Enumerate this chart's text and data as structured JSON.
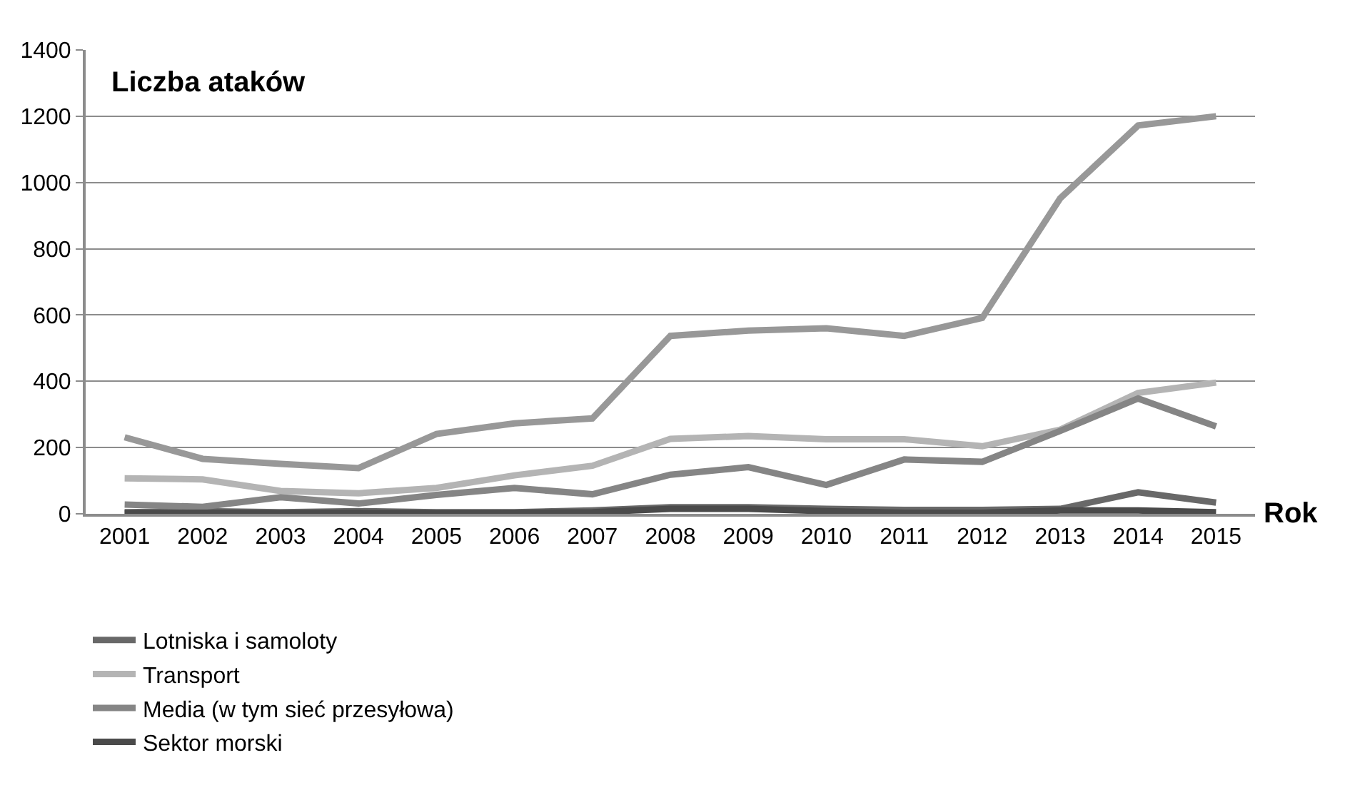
{
  "chart_data": {
    "type": "line",
    "ylabel": "Liczba ataków",
    "xlabel": "Rok",
    "categories": [
      "2001",
      "2002",
      "2003",
      "2004",
      "2005",
      "2006",
      "2007",
      "2008",
      "2009",
      "2010",
      "2011",
      "2012",
      "2013",
      "2014",
      "2015"
    ],
    "series": [
      {
        "name": "Lotniska i samoloty",
        "color": "#686868",
        "values": [
          5,
          8,
          5,
          8,
          5,
          5,
          10,
          20,
          20,
          15,
          12,
          12,
          15,
          65,
          34
        ]
      },
      {
        "name": "Transport",
        "color": "#b4b4b4",
        "values": [
          107,
          104,
          69,
          62,
          78,
          116,
          145,
          226,
          235,
          225,
          225,
          204,
          254,
          365,
          396
        ]
      },
      {
        "name": "Media (w tym sieć przesyłowa)",
        "color": "#858585",
        "values": [
          28,
          21,
          50,
          31,
          57,
          78,
          59,
          118,
          141,
          87,
          164,
          157,
          250,
          348,
          264
        ]
      },
      {
        "name": "Sektor morski",
        "color": "#4a4a4a",
        "values": [
          2,
          3,
          2,
          3,
          2,
          3,
          5,
          15,
          15,
          8,
          3,
          3,
          10,
          10,
          5
        ]
      },
      {
        "color": "#989898",
        "values": [
          231,
          166,
          151,
          138,
          241,
          273,
          288,
          537,
          553,
          560,
          537,
          591,
          952,
          1172,
          1200
        ]
      }
    ],
    "ylim": [
      0,
      1400
    ],
    "yticks": [
      0,
      200,
      400,
      600,
      800,
      1000,
      1200,
      1400
    ],
    "grid": "y",
    "legend": "bottom",
    "marker": "none",
    "line_style": "solid"
  }
}
